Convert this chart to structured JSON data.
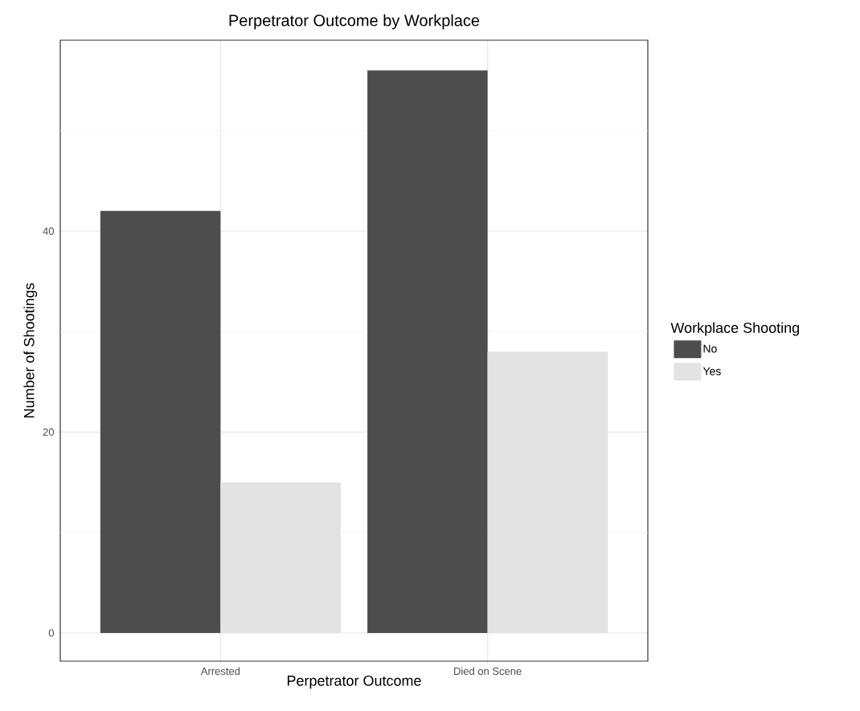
{
  "chart_data": {
    "type": "bar",
    "title": "Perpetrator Outcome by Workplace",
    "xlabel": "Perpetrator Outcome",
    "ylabel": "Number of Shootings",
    "legend_title": "Workplace Shooting",
    "categories": [
      "Arrested",
      "Died on Scene"
    ],
    "series": [
      {
        "name": "No",
        "color": "#4d4d4d",
        "values": [
          42,
          56
        ]
      },
      {
        "name": "Yes",
        "color": "#e3e3e3",
        "values": [
          15,
          28
        ]
      }
    ],
    "ylim": [
      -2.8,
      59
    ],
    "yticks": [
      0,
      {
        "value": 10,
        "label": null
      },
      20,
      {
        "value": 30,
        "label": null
      },
      40,
      {
        "value": 50,
        "label": null
      }
    ],
    "grid": true,
    "legend": "right"
  }
}
